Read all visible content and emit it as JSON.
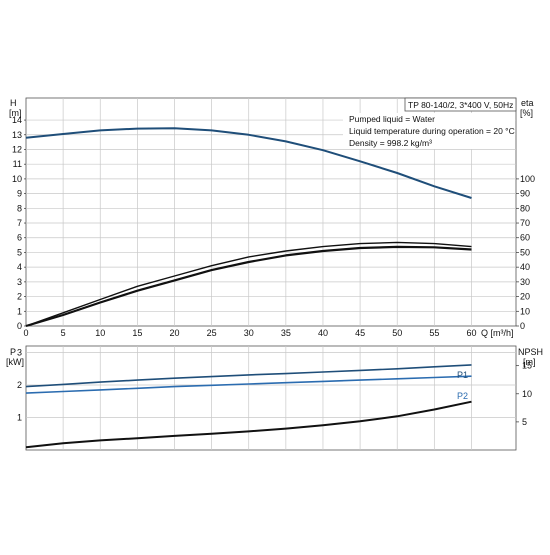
{
  "chart_data": [
    {
      "type": "line",
      "panel": "head-efficiency",
      "title": "TP 80-140/2, 3*400 V, 50Hz",
      "annotations": [
        "Pumped liquid = Water",
        "Liquid temperature during operation = 20 °C",
        "Density = 998.2 kg/m³"
      ],
      "left_axis": {
        "label_top": "H",
        "label_unit": "[m]",
        "range": [
          0,
          14
        ],
        "ticks": [
          "0",
          "1",
          "2",
          "3",
          "4",
          "5",
          "6",
          "7",
          "8",
          "9",
          "10",
          "11",
          "12",
          "13",
          "14"
        ]
      },
      "right_axis": {
        "label_top": "eta",
        "label_unit": "[%]",
        "range": [
          0,
          100
        ],
        "ticks": [
          "0",
          "10",
          "20",
          "30",
          "40",
          "50",
          "60",
          "70",
          "80",
          "90",
          "100"
        ]
      },
      "x_axis": {
        "label": "Q [m³/h]",
        "range": [
          0,
          60
        ],
        "ticks": [
          "0",
          "5",
          "10",
          "15",
          "20",
          "25",
          "30",
          "35",
          "40",
          "45",
          "50",
          "55",
          "60"
        ]
      },
      "grid": true,
      "series": [
        {
          "axis": "left",
          "color": "#1f4e79",
          "x": [
            0,
            5,
            10,
            15,
            20,
            25,
            30,
            35,
            40,
            45,
            50,
            55,
            60
          ],
          "y": [
            12.8,
            13.05,
            13.3,
            13.42,
            13.45,
            13.3,
            13.0,
            12.55,
            11.95,
            11.2,
            10.4,
            9.5,
            8.7
          ]
        },
        {
          "axis": "right",
          "color": "#111111",
          "x": [
            0,
            5,
            10,
            15,
            20,
            25,
            30,
            35,
            40,
            45,
            50,
            55,
            60
          ],
          "y": [
            0,
            9,
            18,
            27,
            34,
            41,
            47,
            51,
            54,
            56,
            56.8,
            56,
            54
          ]
        },
        {
          "axis": "right",
          "color": "#111111",
          "x": [
            0,
            5,
            10,
            15,
            20,
            25,
            30,
            35,
            40,
            45,
            50,
            55,
            60
          ],
          "y": [
            0,
            7.5,
            16,
            24,
            31,
            38,
            43.5,
            48,
            51,
            53,
            53.8,
            53.5,
            52
          ]
        }
      ]
    },
    {
      "type": "line",
      "panel": "power-npsh",
      "left_axis": {
        "label_top": "P",
        "label_unit": "[kW]",
        "range": [
          0,
          3
        ],
        "ticks": [
          "1",
          "2",
          "3"
        ]
      },
      "right_axis": {
        "label_top": "NPSH",
        "label_unit": "[m]",
        "range": [
          0,
          18
        ],
        "ticks": [
          "5",
          "10",
          "15"
        ]
      },
      "x_axis": {
        "range": [
          0,
          60
        ]
      },
      "grid": true,
      "series": [
        {
          "name": "P1",
          "axis": "left",
          "color": "#1f4e79",
          "x": [
            0,
            5,
            10,
            15,
            20,
            25,
            30,
            35,
            40,
            45,
            50,
            55,
            60
          ],
          "y": [
            1.95,
            2.02,
            2.09,
            2.15,
            2.21,
            2.26,
            2.31,
            2.35,
            2.4,
            2.45,
            2.5,
            2.56,
            2.62
          ]
        },
        {
          "name": "P2",
          "axis": "left",
          "color": "#2b6cb0",
          "x": [
            0,
            5,
            10,
            15,
            20,
            25,
            30,
            35,
            40,
            45,
            50,
            55,
            60
          ],
          "y": [
            1.75,
            1.8,
            1.85,
            1.9,
            1.95,
            1.99,
            2.03,
            2.07,
            2.11,
            2.15,
            2.19,
            2.23,
            2.27
          ]
        },
        {
          "axis": "right",
          "color": "#111111",
          "x": [
            0,
            5,
            10,
            15,
            20,
            25,
            30,
            35,
            40,
            45,
            50,
            55,
            60
          ],
          "y": [
            0.5,
            1.2,
            1.7,
            2.1,
            2.5,
            2.9,
            3.3,
            3.8,
            4.4,
            5.1,
            6.0,
            7.2,
            8.6
          ]
        }
      ]
    }
  ]
}
